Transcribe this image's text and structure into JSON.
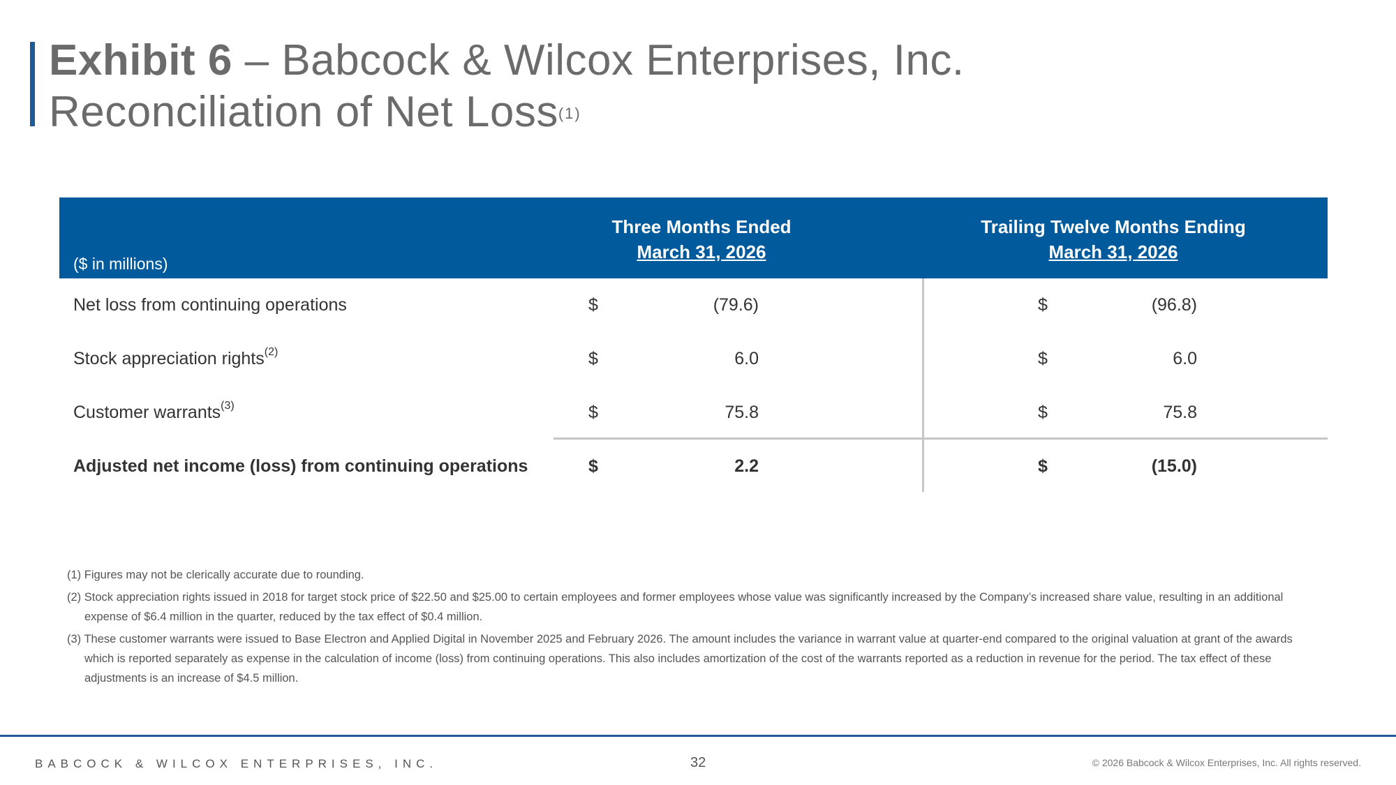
{
  "title": {
    "exhibit": "Exhibit 6",
    "rest_line1": " – Babcock & Wilcox Enterprises, Inc.",
    "line2": "Reconciliation of Net Loss",
    "line2_sup": "(1)"
  },
  "table": {
    "units_label": "($ in millions)",
    "columns": [
      {
        "heading": "Three Months Ended",
        "date": "March 31, 2026"
      },
      {
        "heading": "Trailing Twelve Months Ending",
        "date": "March 31, 2026"
      }
    ],
    "rows": [
      {
        "label": "Net loss from continuing operations",
        "sup": "",
        "currency": "$",
        "values": [
          "(79.6)",
          "(96.8)"
        ]
      },
      {
        "label": "Stock appreciation rights",
        "sup": "(2)",
        "currency": "$",
        "values": [
          "6.0",
          "6.0"
        ]
      },
      {
        "label": "Customer warrants",
        "sup": "(3)",
        "currency": "$",
        "values": [
          "75.8",
          "75.8"
        ]
      },
      {
        "label": "Adjusted net income (loss) from continuing operations",
        "sup": "",
        "currency": "$",
        "values": [
          "2.2",
          "(15.0)"
        ]
      }
    ]
  },
  "notes": [
    "(1) Figures may not be clerically accurate due to rounding.",
    "(2) Stock appreciation rights issued in 2018 for target stock price of $22.50 and $25.00 to certain employees and former employees whose value was significantly increased by the Company’s increased share value, resulting in an additional expense of $6.4 million in the quarter, reduced by the tax effect of $0.4 million.",
    "(3) These customer warrants were issued to Base Electron and Applied Digital in November 2025 and February 2026. The amount includes the variance in warrant value at quarter-end compared to the original valuation at grant of the awards which is reported separately as expense in the calculation of income (loss) from continuing operations. This also includes amortization of the cost of the warrants reported as a reduction in revenue for the period. The tax effect of these adjustments is an increase of $4.5 million."
  ],
  "footer": {
    "company": "BABCOCK & WILCOX ENTERPRISES, INC.",
    "page": "32",
    "copyright": "© 2026 Babcock & Wilcox Enterprises, Inc. All rights reserved."
  },
  "colors": {
    "accent": "#005a9c",
    "title_bar": "#1f5a96"
  }
}
